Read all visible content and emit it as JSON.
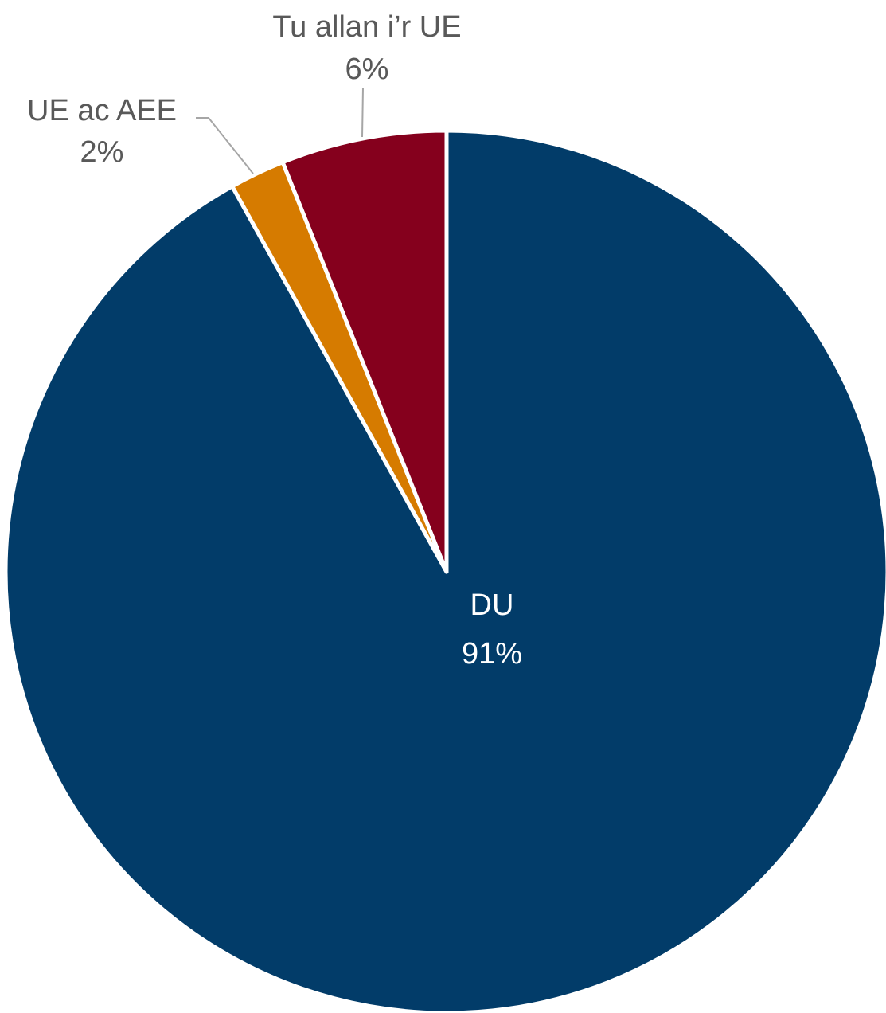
{
  "chart_data": {
    "type": "pie",
    "slices": [
      {
        "label": "DU",
        "value": 91,
        "value_label": "91%",
        "color": "#023C69"
      },
      {
        "label": "UE ac AEE",
        "value": 2,
        "value_label": "2%",
        "color": "#D67B00"
      },
      {
        "label": "Tu allan i’r UE",
        "value": 6,
        "value_label": "6%",
        "color": "#85001D"
      }
    ],
    "label_colors": {
      "inside": "#ffffff",
      "outside": "#595959",
      "leader_line": "#A6A6A6"
    }
  }
}
